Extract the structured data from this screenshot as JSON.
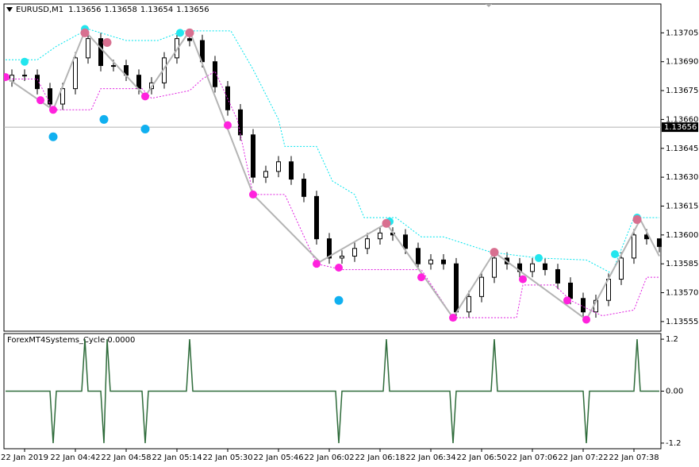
{
  "chart_data": [
    {
      "type": "candlestick",
      "header": {
        "symbol": "EURUSD,M1",
        "open": 1.13656,
        "high": 1.13658,
        "low": 1.13654,
        "close": 1.13656
      },
      "current_price": 1.13656,
      "xlim": [
        -0.5,
        206.5
      ],
      "ylim": [
        1.1355,
        1.1372
      ],
      "yticks": [
        1.13705,
        {
          "value": 1.1369,
          "label": "1.13690"
        },
        1.13675,
        {
          "value": 1.1366,
          "label": "1.13660"
        },
        1.13645,
        {
          "value": 1.1363,
          "label": "1.13630"
        },
        1.13615,
        {
          "value": 1.136,
          "label": "1.13600"
        },
        1.13585,
        {
          "value": 1.1357,
          "label": "1.13570"
        },
        1.13555
      ],
      "xticks": [
        {
          "value": 6,
          "label": "22 Jan 2019"
        },
        {
          "value": 22,
          "label": "22 Jan 04:42"
        },
        {
          "value": 38,
          "label": "22 Jan 04:58"
        },
        {
          "value": 54,
          "label": "22 Jan 05:14"
        },
        {
          "value": 70,
          "label": "22 Jan 05:30"
        },
        {
          "value": 86,
          "label": "22 Jan 05:46"
        },
        {
          "value": 102,
          "label": "22 Jan 06:02"
        },
        {
          "value": 118,
          "label": "22 Jan 06:18"
        },
        {
          "value": 134,
          "label": "22 Jan 06:34"
        },
        {
          "value": 150,
          "label": "22 Jan 06:50"
        },
        {
          "value": 166,
          "label": "22 Jan 07:06"
        },
        {
          "value": 182,
          "label": "22 Jan 07:22"
        },
        {
          "value": 198,
          "label": "22 Jan 07:38"
        }
      ],
      "up_color": "#ffffff",
      "down_color": "#000000",
      "outline_color": "#000000",
      "x": [
        2,
        6,
        10,
        14,
        18,
        22,
        26,
        30,
        34,
        38,
        42,
        46,
        50,
        54,
        58,
        62,
        66,
        70,
        74,
        78,
        82,
        86,
        90,
        94,
        98,
        102,
        106,
        110,
        114,
        118,
        122,
        126,
        130,
        134,
        138,
        142,
        146,
        150,
        154,
        158,
        162,
        166,
        170,
        174,
        178,
        182,
        186,
        190,
        194,
        198,
        202,
        206
      ],
      "open": [
        1.1368,
        1.13683,
        1.13683,
        1.13676,
        1.13668,
        1.13676,
        1.13692,
        1.13702,
        1.13688,
        1.13688,
        1.13683,
        1.13676,
        1.13679,
        1.13692,
        1.13702,
        1.13701,
        1.1369,
        1.13677,
        1.13665,
        1.13652,
        1.1363,
        1.13633,
        1.13638,
        1.13629,
        1.1362,
        1.13598,
        1.13588,
        1.13589,
        1.13593,
        1.13598,
        1.13601,
        1.136,
        1.13593,
        1.13585,
        1.13587,
        1.13585,
        1.1356,
        1.13568,
        1.13578,
        1.13588,
        1.13585,
        1.13581,
        1.13585,
        1.13582,
        1.13575,
        1.13567,
        1.1356,
        1.13566,
        1.13577,
        1.13588,
        1.136,
        1.13598
      ],
      "high": [
        1.13686,
        1.13686,
        1.13686,
        1.13679,
        1.13679,
        1.13695,
        1.13705,
        1.13705,
        1.13691,
        1.13691,
        1.13686,
        1.13682,
        1.13695,
        1.13705,
        1.13705,
        1.13704,
        1.13693,
        1.1368,
        1.13668,
        1.13655,
        1.13636,
        1.13641,
        1.13641,
        1.13632,
        1.13623,
        1.13601,
        1.13592,
        1.13596,
        1.13601,
        1.13604,
        1.13604,
        1.13603,
        1.13596,
        1.1359,
        1.1359,
        1.13588,
        1.13571,
        1.13581,
        1.13591,
        1.13591,
        1.13588,
        1.13588,
        1.13588,
        1.13585,
        1.13578,
        1.1357,
        1.13569,
        1.1358,
        1.13591,
        1.13603,
        1.13603,
        1.13597
      ],
      "low": [
        1.13677,
        1.1368,
        1.13673,
        1.13665,
        1.13665,
        1.13673,
        1.13689,
        1.13685,
        1.13685,
        1.1368,
        1.13673,
        1.13673,
        1.13676,
        1.13689,
        1.13698,
        1.13687,
        1.13674,
        1.13662,
        1.13649,
        1.13627,
        1.13627,
        1.1363,
        1.13626,
        1.13617,
        1.13595,
        1.13585,
        1.13585,
        1.13586,
        1.1359,
        1.13595,
        1.13597,
        1.1359,
        1.13582,
        1.13582,
        1.13582,
        1.13557,
        1.13557,
        1.13565,
        1.13575,
        1.13582,
        1.13578,
        1.13578,
        1.13579,
        1.13572,
        1.13564,
        1.13557,
        1.13557,
        1.13563,
        1.13574,
        1.13585,
        1.13595,
        1.13591
      ],
      "close": [
        1.13683,
        1.13683,
        1.13676,
        1.13668,
        1.13676,
        1.13692,
        1.13702,
        1.13688,
        1.13688,
        1.13683,
        1.13676,
        1.13679,
        1.13692,
        1.13702,
        1.13701,
        1.1369,
        1.13677,
        1.13665,
        1.13652,
        1.1363,
        1.13633,
        1.13638,
        1.13629,
        1.1362,
        1.13598,
        1.13588,
        1.13589,
        1.13593,
        1.13598,
        1.13601,
        1.136,
        1.13593,
        1.13585,
        1.13587,
        1.13585,
        1.1356,
        1.13568,
        1.13578,
        1.13588,
        1.13585,
        1.13581,
        1.13585,
        1.13582,
        1.13575,
        1.13567,
        1.1356,
        1.13566,
        1.13577,
        1.13588,
        1.136,
        1.13598,
        1.13594
      ],
      "series": [
        {
          "type": "line",
          "color": "#00e5ee",
          "dashed": true,
          "width": 1,
          "x": [
            0,
            10,
            16,
            26,
            38,
            48,
            56,
            71,
            78,
            86,
            88,
            98,
            103,
            110,
            113,
            123,
            131,
            138,
            153,
            168,
            183,
            191,
            198,
            206
          ],
          "values": [
            1.13691,
            1.13691,
            1.13698,
            1.13707,
            1.13701,
            1.13701,
            1.13706,
            1.13706,
            1.13686,
            1.1366,
            1.13646,
            1.13646,
            1.13628,
            1.13621,
            1.13609,
            1.13609,
            1.13599,
            1.13599,
            1.13591,
            1.13588,
            1.13587,
            1.1358,
            1.13609,
            1.13609
          ]
        },
        {
          "type": "line",
          "color": "#e020e0",
          "dashed": true,
          "width": 1,
          "x": [
            0,
            10,
            15,
            27,
            30,
            43,
            46,
            58,
            62,
            66,
            73,
            78,
            88,
            98,
            106,
            131,
            141,
            161,
            163,
            173,
            178,
            188,
            198,
            202,
            206
          ],
          "values": [
            1.13681,
            1.13681,
            1.13665,
            1.13665,
            1.13676,
            1.13676,
            1.13671,
            1.13675,
            1.13681,
            1.13685,
            1.1366,
            1.13621,
            1.13621,
            1.13585,
            1.13582,
            1.13582,
            1.13557,
            1.13557,
            1.13574,
            1.13574,
            1.13566,
            1.13558,
            1.13561,
            1.13578,
            1.13578
          ]
        },
        {
          "type": "line",
          "color": "#b4b4b4",
          "dashed": false,
          "width": 2,
          "x": [
            0,
            15,
            25,
            44,
            58,
            78,
            99,
            120,
            141,
            154,
            183,
            200,
            206
          ],
          "values": [
            1.13682,
            1.13665,
            1.13706,
            1.13672,
            1.13706,
            1.13621,
            1.13586,
            1.13606,
            1.13557,
            1.13591,
            1.13556,
            1.13608,
            1.13589
          ]
        },
        {
          "type": "scatter",
          "color": "#ff22dd",
          "radius": 5,
          "x": [
            0,
            11,
            15,
            44,
            70,
            78,
            98,
            105,
            131,
            141,
            163,
            177,
            183
          ],
          "values": [
            1.13682,
            1.1367,
            1.13665,
            1.13672,
            1.13657,
            1.13621,
            1.13585,
            1.13583,
            1.13578,
            1.13557,
            1.13577,
            1.13566,
            1.13556
          ]
        },
        {
          "type": "scatter",
          "color": "#22e6ee",
          "radius": 5,
          "x": [
            6,
            25,
            55,
            121,
            168,
            192,
            199
          ],
          "values": [
            1.1369,
            1.13707,
            1.13705,
            1.13607,
            1.13588,
            1.1359,
            1.13609
          ]
        },
        {
          "type": "scatter",
          "color": "#d87090",
          "radius": 5.5,
          "x": [
            25,
            32,
            58,
            120,
            154,
            199
          ],
          "values": [
            1.13705,
            1.137,
            1.13705,
            1.13606,
            1.13591,
            1.13608
          ]
        },
        {
          "type": "scatter",
          "color": "#10b0f0",
          "radius": 5.5,
          "x": [
            15,
            31,
            44,
            105
          ],
          "values": [
            1.13651,
            1.1366,
            1.13655,
            1.13566
          ]
        }
      ]
    },
    {
      "type": "line",
      "title": "ForexMT4Systems_Cycle 0.0000",
      "xlim": [
        -0.5,
        206.5
      ],
      "ylim": [
        -1.33,
        1.33
      ],
      "yticks": [
        1.2,
        {
          "value": 0,
          "label": "0.00"
        },
        -1.2
      ],
      "series": [
        {
          "color": "#2e6b3a",
          "x": [
            0,
            14,
            15,
            16,
            24,
            25,
            26,
            30,
            31,
            31.5,
            32,
            33,
            43,
            44,
            45,
            57,
            58,
            59,
            104,
            105,
            106,
            119,
            120,
            121,
            140,
            141,
            142,
            153,
            154,
            155,
            182,
            183,
            184,
            198,
            199,
            200,
            206
          ],
          "values": [
            0,
            0,
            -1.2,
            0,
            0,
            1.2,
            0,
            0,
            -1.2,
            0,
            1.2,
            0,
            0,
            -1.2,
            0,
            0,
            1.2,
            0,
            0,
            -1.2,
            0,
            0,
            1.2,
            0,
            0,
            -1.2,
            0,
            0,
            1.2,
            0,
            0,
            -1.2,
            0,
            0,
            1.2,
            0,
            0
          ]
        }
      ]
    }
  ]
}
